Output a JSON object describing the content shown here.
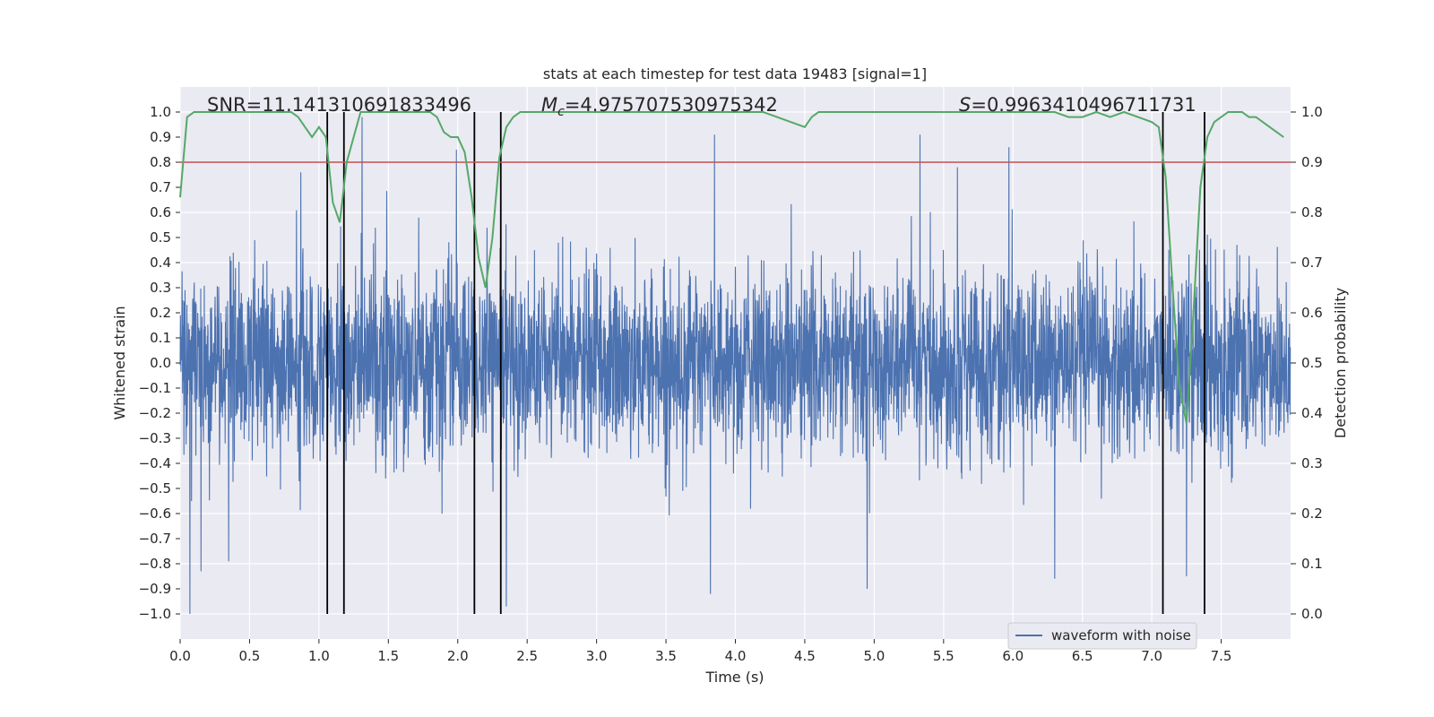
{
  "chart_data": {
    "type": "line",
    "title": "stats at each timestep for test data 19483 [signal=1]",
    "xlabel": "Time (s)",
    "ylabel": "Whitened strain",
    "y2label": "Detection probability",
    "xlim": [
      0.0,
      8.0
    ],
    "ylim": [
      -1.1,
      1.1
    ],
    "y2lim": [
      -0.05,
      1.05
    ],
    "xticks": [
      0.0,
      0.5,
      1.0,
      1.5,
      2.0,
      2.5,
      3.0,
      3.5,
      4.0,
      4.5,
      5.0,
      5.5,
      6.0,
      6.5,
      7.0,
      7.5
    ],
    "xtick_labels": [
      "0.0",
      "0.5",
      "1.0",
      "1.5",
      "2.0",
      "2.5",
      "3.0",
      "3.5",
      "4.0",
      "4.5",
      "5.0",
      "5.5",
      "6.0",
      "6.5",
      "7.0",
      "7.5"
    ],
    "yticks": [
      1.0,
      0.9,
      0.8,
      0.7,
      0.6,
      0.5,
      0.4,
      0.3,
      0.2,
      0.1,
      0.0,
      -0.1,
      -0.2,
      -0.3,
      -0.4,
      -0.5,
      -0.6,
      -0.7,
      -0.8,
      -0.9,
      -1.0
    ],
    "ytick_labels": [
      "1.0",
      "0.9",
      "0.8",
      "0.7",
      "0.6",
      "0.5",
      "0.4",
      "0.3",
      "0.2",
      "0.1",
      "0.0",
      "−0.1",
      "−0.2",
      "−0.3",
      "−0.4",
      "−0.5",
      "−0.6",
      "−0.7",
      "−0.8",
      "−0.9",
      "−1.0"
    ],
    "y2ticks": [
      1.0,
      0.9,
      0.8,
      0.7,
      0.6,
      0.5,
      0.4,
      0.3,
      0.2,
      0.1,
      0.0
    ],
    "y2tick_labels": [
      "1.0",
      "0.9",
      "0.8",
      "0.7",
      "0.6",
      "0.5",
      "0.4",
      "0.3",
      "0.2",
      "0.1",
      "0.0"
    ],
    "grid": true,
    "legend": {
      "position": "lower-right",
      "entries": [
        "waveform with noise"
      ]
    },
    "waveform": {
      "name": "waveform with noise",
      "color": "#4c72b0",
      "samples": 4096,
      "typical_amplitude": 0.4,
      "max": 0.98,
      "min": -1.0,
      "peaks": [
        [
          0.07,
          -1.0
        ],
        [
          0.15,
          -0.83
        ],
        [
          0.35,
          -0.79
        ],
        [
          0.87,
          0.76
        ],
        [
          1.31,
          0.98
        ],
        [
          1.99,
          0.85
        ],
        [
          2.35,
          -0.97
        ],
        [
          3.82,
          -0.92
        ],
        [
          3.85,
          0.91
        ],
        [
          4.95,
          -0.9
        ],
        [
          5.33,
          0.91
        ],
        [
          5.6,
          0.78
        ],
        [
          5.97,
          0.86
        ],
        [
          6.3,
          -0.86
        ],
        [
          7.25,
          -0.85
        ]
      ]
    },
    "threshold": {
      "value": 0.9,
      "axis": "y2",
      "color": "#c44e52"
    },
    "detection_probability": {
      "axis": "y2",
      "color": "#55a868",
      "x": [
        0.0,
        0.05,
        0.1,
        0.15,
        0.2,
        0.3,
        0.4,
        0.5,
        0.6,
        0.7,
        0.8,
        0.85,
        0.9,
        0.95,
        1.0,
        1.05,
        1.1,
        1.15,
        1.2,
        1.25,
        1.3,
        1.4,
        1.5,
        1.6,
        1.7,
        1.8,
        1.85,
        1.9,
        1.95,
        2.0,
        2.05,
        2.1,
        2.15,
        2.2,
        2.25,
        2.3,
        2.35,
        2.4,
        2.45,
        2.5,
        2.6,
        2.8,
        3.0,
        3.5,
        4.0,
        4.2,
        4.3,
        4.4,
        4.5,
        4.55,
        4.6,
        4.7,
        4.8,
        5.0,
        5.5,
        6.0,
        6.2,
        6.3,
        6.4,
        6.5,
        6.6,
        6.7,
        6.8,
        6.9,
        7.0,
        7.05,
        7.1,
        7.15,
        7.2,
        7.25,
        7.3,
        7.35,
        7.4,
        7.45,
        7.5,
        7.55,
        7.6,
        7.65,
        7.7,
        7.75,
        7.8,
        7.85,
        7.9,
        7.95
      ],
      "y": [
        0.83,
        0.99,
        1.0,
        1.0,
        1.0,
        1.0,
        1.0,
        1.0,
        1.0,
        1.0,
        1.0,
        0.99,
        0.97,
        0.95,
        0.97,
        0.95,
        0.82,
        0.78,
        0.9,
        0.95,
        1.0,
        1.0,
        1.0,
        1.0,
        1.0,
        1.0,
        0.99,
        0.96,
        0.95,
        0.95,
        0.92,
        0.83,
        0.71,
        0.65,
        0.75,
        0.91,
        0.97,
        0.99,
        1.0,
        1.0,
        1.0,
        1.0,
        1.0,
        1.0,
        1.0,
        1.0,
        0.99,
        0.98,
        0.97,
        0.99,
        1.0,
        1.0,
        1.0,
        1.0,
        1.0,
        1.0,
        1.0,
        1.0,
        0.99,
        0.99,
        1.0,
        0.99,
        1.0,
        0.99,
        0.98,
        0.97,
        0.87,
        0.65,
        0.45,
        0.38,
        0.6,
        0.85,
        0.95,
        0.98,
        0.99,
        1.0,
        1.0,
        1.0,
        0.99,
        0.99,
        0.98,
        0.97,
        0.96,
        0.95
      ]
    },
    "segment_markers_x": [
      1.06,
      1.18,
      2.12,
      2.31,
      7.08,
      7.38
    ],
    "annotations": {
      "snr": "SNR=11.141310691833496",
      "mc_symbol": "M",
      "mc_sub": "c",
      "mc_value": "=4.975707530975342",
      "s_symbol": "S",
      "s_value": "=0.9963410496711731"
    }
  }
}
